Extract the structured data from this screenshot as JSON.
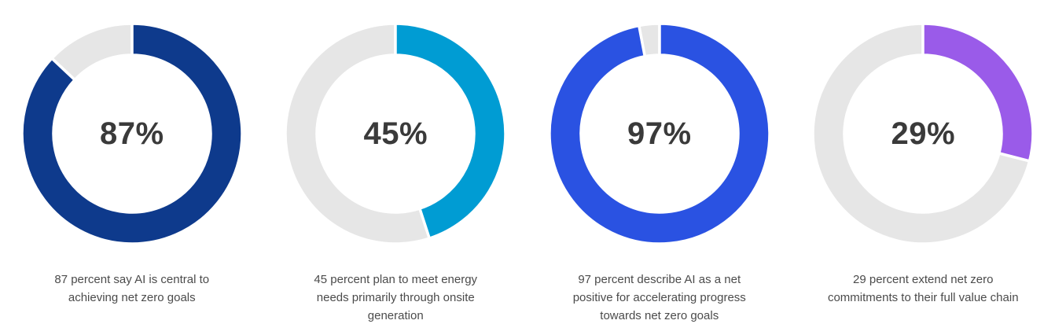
{
  "chart_data": {
    "type": "pie",
    "subtype": "donut",
    "layout": "four-donuts-in-a-row",
    "start_angle_deg": 0,
    "direction": "clockwise",
    "remainder_color": "#e6e6e6",
    "slice_border_color": "#ffffff",
    "value_text_color": "#3a3a3a",
    "caption_text_color": "#4b4b4b",
    "charts": [
      {
        "value": 87,
        "remainder": 13,
        "label": "87%",
        "color": "#0e3a8c",
        "caption": [
          "87 percent say AI is central to",
          "achieving net zero goals"
        ]
      },
      {
        "value": 45,
        "remainder": 55,
        "label": "45%",
        "color": "#009cd3",
        "caption": [
          "45 percent plan to meet energy",
          "needs primarily through onsite",
          "generation"
        ]
      },
      {
        "value": 97,
        "remainder": 3,
        "label": "97%",
        "color": "#2a52e2",
        "caption": [
          "97 percent describe AI as a net",
          "positive for accelerating progress",
          "towards net zero goals"
        ]
      },
      {
        "value": 29,
        "remainder": 71,
        "label": "29%",
        "color": "#9a5be9",
        "caption": [
          "29 percent extend net zero",
          "commitments to their full value chain"
        ]
      }
    ]
  }
}
